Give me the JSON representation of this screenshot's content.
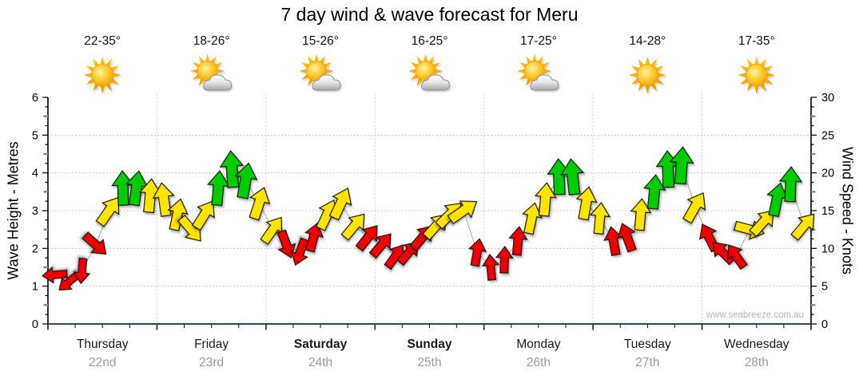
{
  "title": "7 day wind & wave forecast for Meru",
  "watermark": "www.seabreeze.com.au",
  "axes": {
    "left_label": "Wave Height - Metres",
    "right_label": "Wind Speed - Knots",
    "left_ticks": [
      0,
      1,
      2,
      3,
      4,
      5,
      6
    ],
    "right_ticks": [
      0,
      5,
      10,
      15,
      20,
      25,
      30
    ]
  },
  "chart_data": {
    "type": "scatter",
    "description": "Wind arrows plotted against wind speed (knots, right axis) / wave height (metres, left axis); arrow rotation = wind direction, colour = strength band",
    "ylim_metres": [
      0,
      6
    ],
    "ylim_knots": [
      0,
      30
    ],
    "grid": "dotted horizontal at 1-5 m, dotted vertical at day boundaries",
    "colors": {
      "r": "#ee0000",
      "y": "#ffe400",
      "g": "#00cc00",
      "line": "#aeaeae",
      "axis_bottom": "#1f4e79",
      "axis": "#000000",
      "grid": "#b8b8b8",
      "day_divider": "#c9c9c9"
    },
    "days": [
      {
        "name": "Thursday",
        "date": "22nd",
        "temp": "22-35°",
        "icon": "sun",
        "bold": false
      },
      {
        "name": "Friday",
        "date": "23rd",
        "temp": "18-26°",
        "icon": "sun-cloud",
        "bold": false
      },
      {
        "name": "Saturday",
        "date": "24th",
        "temp": "15-26°",
        "icon": "sun-cloud",
        "bold": true
      },
      {
        "name": "Sunday",
        "date": "25th",
        "temp": "16-25°",
        "icon": "sun-cloud",
        "bold": true
      },
      {
        "name": "Monday",
        "date": "26th",
        "temp": "17-25°",
        "icon": "sun-cloud",
        "bold": false
      },
      {
        "name": "Tuesday",
        "date": "27th",
        "temp": "14-28°",
        "icon": "sun",
        "bold": false
      },
      {
        "name": "Wednesday",
        "date": "28th",
        "temp": "17-35°",
        "icon": "sun",
        "bold": false
      }
    ],
    "arrows": [
      {
        "d": 0,
        "s": 0,
        "kn": 6.5,
        "dir": 265,
        "c": "r"
      },
      {
        "d": 0,
        "s": 1,
        "kn": 5.5,
        "dir": 230,
        "c": "r"
      },
      {
        "d": 0,
        "s": 2,
        "kn": 7,
        "dir": 185,
        "c": "r"
      },
      {
        "d": 0,
        "s": 3,
        "kn": 10.5,
        "dir": 132,
        "c": "r"
      },
      {
        "d": 0,
        "s": 4,
        "kn": 15,
        "dir": 35,
        "c": "y"
      },
      {
        "d": 0,
        "s": 5,
        "kn": 18,
        "dir": 358,
        "c": "g"
      },
      {
        "d": 0,
        "s": 6,
        "kn": 18,
        "dir": 8,
        "c": "g"
      },
      {
        "d": 0,
        "s": 7,
        "kn": 17,
        "dir": 5,
        "c": "y"
      },
      {
        "d": 1,
        "s": 0,
        "kn": 16.5,
        "dir": 352,
        "c": "y"
      },
      {
        "d": 1,
        "s": 1,
        "kn": 14.5,
        "dir": 12,
        "c": "y"
      },
      {
        "d": 1,
        "s": 2,
        "kn": 12.5,
        "dir": 140,
        "c": "y"
      },
      {
        "d": 1,
        "s": 3,
        "kn": 14.5,
        "dir": 32,
        "c": "y"
      },
      {
        "d": 1,
        "s": 4,
        "kn": 18,
        "dir": 5,
        "c": "g"
      },
      {
        "d": 1,
        "s": 5,
        "kn": 20.5,
        "dir": 356,
        "c": "g"
      },
      {
        "d": 1,
        "s": 6,
        "kn": 19,
        "dir": 10,
        "c": "g"
      },
      {
        "d": 1,
        "s": 7,
        "kn": 16,
        "dir": 18,
        "c": "y"
      },
      {
        "d": 2,
        "s": 0,
        "kn": 12.5,
        "dir": 35,
        "c": "y"
      },
      {
        "d": 2,
        "s": 1,
        "kn": 10.5,
        "dir": 160,
        "c": "r"
      },
      {
        "d": 2,
        "s": 2,
        "kn": 9.5,
        "dir": 200,
        "c": "r"
      },
      {
        "d": 2,
        "s": 3,
        "kn": 11.5,
        "dir": 15,
        "c": "r"
      },
      {
        "d": 2,
        "s": 4,
        "kn": 14.5,
        "dir": 25,
        "c": "y"
      },
      {
        "d": 2,
        "s": 5,
        "kn": 16,
        "dir": 25,
        "c": "y"
      },
      {
        "d": 2,
        "s": 6,
        "kn": 13,
        "dir": 40,
        "c": "y"
      },
      {
        "d": 2,
        "s": 7,
        "kn": 11.5,
        "dir": 38,
        "c": "r"
      },
      {
        "d": 3,
        "s": 0,
        "kn": 10.5,
        "dir": 40,
        "c": "r"
      },
      {
        "d": 3,
        "s": 1,
        "kn": 9,
        "dir": 35,
        "c": "r"
      },
      {
        "d": 3,
        "s": 2,
        "kn": 9.5,
        "dir": 40,
        "c": "r"
      },
      {
        "d": 3,
        "s": 3,
        "kn": 11.5,
        "dir": 40,
        "c": "r"
      },
      {
        "d": 3,
        "s": 4,
        "kn": 13,
        "dir": 42,
        "c": "y"
      },
      {
        "d": 3,
        "s": 5,
        "kn": 14.5,
        "dir": 45,
        "c": "y"
      },
      {
        "d": 3,
        "s": 6,
        "kn": 15,
        "dir": 55,
        "c": "y"
      },
      {
        "d": 3,
        "s": 7,
        "kn": 9.5,
        "dir": 10,
        "c": "r"
      },
      {
        "d": 4,
        "s": 0,
        "kn": 7.5,
        "dir": 355,
        "c": "r"
      },
      {
        "d": 4,
        "s": 1,
        "kn": 8.5,
        "dir": 2,
        "c": "r"
      },
      {
        "d": 4,
        "s": 2,
        "kn": 11,
        "dir": 5,
        "c": "r"
      },
      {
        "d": 4,
        "s": 3,
        "kn": 14,
        "dir": 12,
        "c": "y"
      },
      {
        "d": 4,
        "s": 4,
        "kn": 16.5,
        "dir": 5,
        "c": "y"
      },
      {
        "d": 4,
        "s": 5,
        "kn": 19.5,
        "dir": 358,
        "c": "g"
      },
      {
        "d": 4,
        "s": 6,
        "kn": 19.5,
        "dir": 354,
        "c": "g"
      },
      {
        "d": 4,
        "s": 7,
        "kn": 16,
        "dir": 10,
        "c": "y"
      },
      {
        "d": 5,
        "s": 0,
        "kn": 14,
        "dir": 5,
        "c": "y"
      },
      {
        "d": 5,
        "s": 1,
        "kn": 11,
        "dir": 350,
        "c": "r"
      },
      {
        "d": 5,
        "s": 2,
        "kn": 11.5,
        "dir": 340,
        "c": "r"
      },
      {
        "d": 5,
        "s": 3,
        "kn": 14.5,
        "dir": 5,
        "c": "y"
      },
      {
        "d": 5,
        "s": 4,
        "kn": 17.5,
        "dir": 5,
        "c": "g"
      },
      {
        "d": 5,
        "s": 5,
        "kn": 20.5,
        "dir": 358,
        "c": "g"
      },
      {
        "d": 5,
        "s": 6,
        "kn": 21,
        "dir": 4,
        "c": "g"
      },
      {
        "d": 5,
        "s": 7,
        "kn": 15.5,
        "dir": 30,
        "c": "y"
      },
      {
        "d": 6,
        "s": 0,
        "kn": 11.5,
        "dir": 333,
        "c": "r"
      },
      {
        "d": 6,
        "s": 1,
        "kn": 9.5,
        "dir": 315,
        "c": "r"
      },
      {
        "d": 6,
        "s": 2,
        "kn": 9,
        "dir": 325,
        "c": "r"
      },
      {
        "d": 6,
        "s": 3,
        "kn": 12.5,
        "dir": 105,
        "c": "y"
      },
      {
        "d": 6,
        "s": 4,
        "kn": 13.5,
        "dir": 42,
        "c": "y"
      },
      {
        "d": 6,
        "s": 5,
        "kn": 16.5,
        "dir": 12,
        "c": "g"
      },
      {
        "d": 6,
        "s": 6,
        "kn": 18.5,
        "dir": 2,
        "c": "g"
      },
      {
        "d": 6,
        "s": 7,
        "kn": 13,
        "dir": 40,
        "c": "y"
      }
    ]
  }
}
